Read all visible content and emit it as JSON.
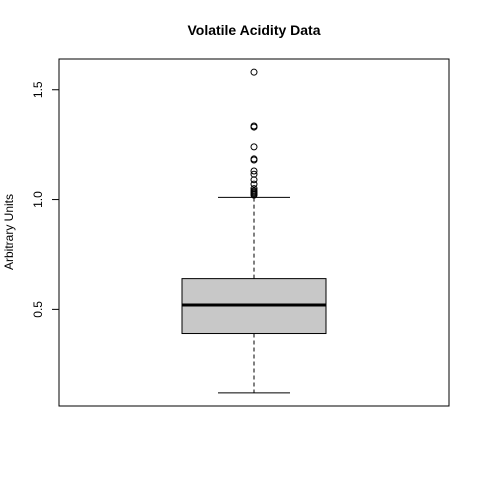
{
  "chart_data": {
    "type": "box",
    "title": "Volatile Acidity Data",
    "xlabel": "",
    "ylabel": "Arbitrary Units",
    "ylim": [
      0.06,
      1.64
    ],
    "yticks": [
      0.5,
      1.0,
      1.5
    ],
    "ytick_labels": [
      "0.5",
      "1.0",
      "1.5"
    ],
    "grid": false,
    "box": {
      "whisker_low": 0.12,
      "q1": 0.39,
      "median": 0.52,
      "q3": 0.64,
      "whisker_high": 1.01,
      "fill": "#c8c8c8"
    },
    "outliers": [
      1.02,
      1.025,
      1.03,
      1.035,
      1.04,
      1.05,
      1.07,
      1.09,
      1.115,
      1.13,
      1.18,
      1.185,
      1.24,
      1.33,
      1.335,
      1.58
    ]
  }
}
